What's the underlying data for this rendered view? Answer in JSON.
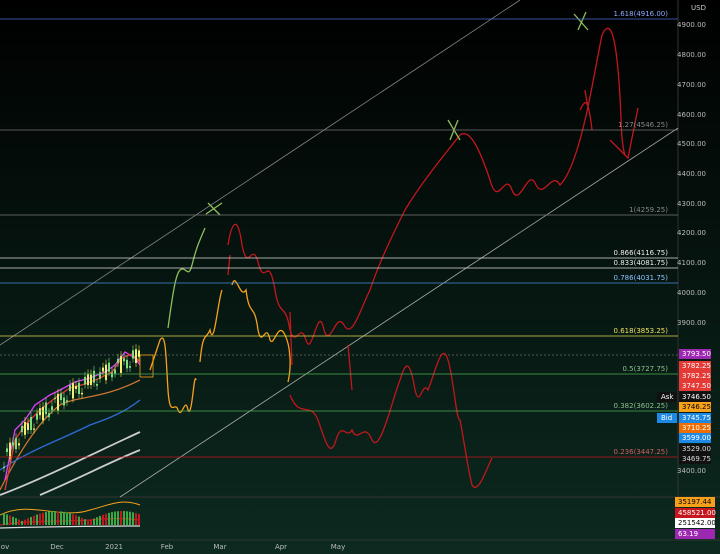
{
  "currency": "USD",
  "price_axis": [
    "4900.00",
    "4800.00",
    "4700.00",
    "4600.00",
    "4500.00",
    "4400.00",
    "4300.00",
    "4200.00",
    "4100.00",
    "4000.00",
    "3900.00",
    "3400.00"
  ],
  "fib_levels": [
    {
      "label": "1.618(4916.00)"
    },
    {
      "label": "1.27(4546.25)"
    },
    {
      "label": "1(4259.25)"
    },
    {
      "label": "0.866(4116.75)"
    },
    {
      "label": "0.833(4081.75)"
    },
    {
      "label": "0.786(4031.75)"
    },
    {
      "label": "0.618(3853.25)"
    },
    {
      "label": "0.5(3727.75)"
    },
    {
      "label": "0.382(3602.25)"
    },
    {
      "label": "0.236(3447.25)"
    }
  ],
  "price_tags": [
    {
      "price": "3793.50"
    },
    {
      "price": "3782.25"
    },
    {
      "price": "3782.25"
    },
    {
      "price": "3747.50"
    },
    {
      "name": "Ask",
      "price": "3746.50"
    },
    {
      "price": "3746.25"
    },
    {
      "name": "Bid",
      "price": "3745.75"
    },
    {
      "price": "3710.25"
    },
    {
      "price": "3599.00"
    },
    {
      "price": "3529.00"
    },
    {
      "price": "3469.75"
    }
  ],
  "indicator_tags": [
    "35197.44",
    "458521.00",
    "251542.00",
    "63.19"
  ],
  "time_axis": [
    "ov",
    "Dec",
    "2021",
    "Feb",
    "Mar",
    "Apr",
    "May"
  ]
}
